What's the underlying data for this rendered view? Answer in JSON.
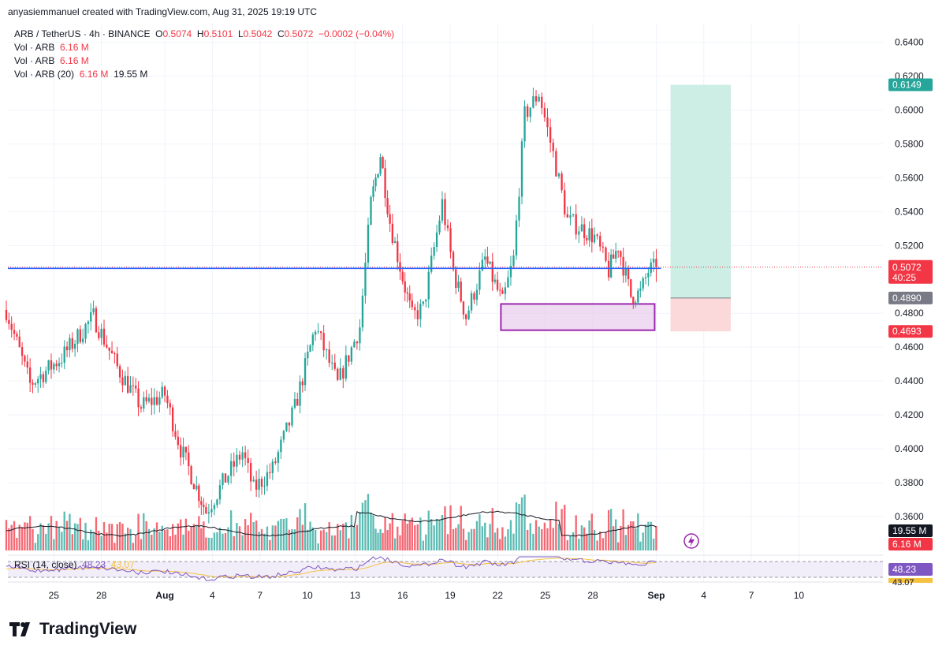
{
  "header": {
    "created_by": "anyasiemmanuel created with TradingView.com, Aug 31, 2025 19:19 UTC"
  },
  "legend": {
    "symbol": "ARB / TetherUS · 4h · BINANCE",
    "o_label": "O",
    "o": "0.5074",
    "h_label": "H",
    "h": "0.5101",
    "l_label": "L",
    "l": "0.5042",
    "c_label": "C",
    "c": "0.5072",
    "change": "−0.0002 (−0.04%)",
    "vol1_label": "Vol · ARB",
    "vol1": "6.16 M",
    "vol2_label": "Vol · ARB",
    "vol2": "6.16 M",
    "vol3_label": "Vol · ARB (20)",
    "vol3_a": "6.16 M",
    "vol3_b": "19.55 M"
  },
  "rsi_legend": {
    "label": "RSI (14, close)",
    "v1": "48.23",
    "v2": "43.07"
  },
  "badges": {
    "target": "0.6149",
    "last": "0.5072",
    "countdown": "40:25",
    "entry": "0.4890",
    "stop": "0.4693",
    "vol_ma": "19.55 M",
    "vol": "6.16 M",
    "rsi": "48.23",
    "rsi_ma": "43.07"
  },
  "brand": {
    "name": "TradingView"
  },
  "colors": {
    "up": "#26a69a",
    "down": "#f23645",
    "hline": "#2962ff",
    "zone": "#9c27b0",
    "target_fill": "#cdeee5",
    "stop_fill": "#fbd9db",
    "rsi": "#7e57c2",
    "rsi_ma": "#f5c242"
  },
  "chart_data": {
    "type": "candlestick",
    "symbol": "ARB / TetherUS",
    "interval": "4h",
    "exchange": "BINANCE",
    "y_ticks": [
      "0.6400",
      "0.6200",
      "0.6000",
      "0.5800",
      "0.5600",
      "0.5400",
      "0.5200",
      "0.4800",
      "0.4600",
      "0.4400",
      "0.4200",
      "0.4000",
      "0.3800",
      "0.3600"
    ],
    "ylim": [
      0.339,
      0.651
    ],
    "x_ticks": [
      "25",
      "28",
      "Aug",
      "4",
      "7",
      "10",
      "13",
      "16",
      "19",
      "22",
      "25",
      "28",
      "Sep",
      "4",
      "7",
      "10"
    ],
    "x_tick_days": [
      -7,
      -4,
      0,
      3,
      6,
      9,
      12,
      15,
      18,
      21,
      24,
      27,
      31,
      34,
      37,
      40
    ],
    "xlim_days": [
      -9.9,
      45.3
    ],
    "swing_points": [
      {
        "d": -10,
        "p": 0.482
      },
      {
        "d": -8.5,
        "p": 0.438
      },
      {
        "d": -6.5,
        "p": 0.454
      },
      {
        "d": -4.5,
        "p": 0.478
      },
      {
        "d": -3,
        "p": 0.448
      },
      {
        "d": -1.5,
        "p": 0.425
      },
      {
        "d": 0,
        "p": 0.432
      },
      {
        "d": 1,
        "p": 0.4
      },
      {
        "d": 2,
        "p": 0.377
      },
      {
        "d": 2.6,
        "p": 0.363
      },
      {
        "d": 4,
        "p": 0.385
      },
      {
        "d": 4.9,
        "p": 0.398
      },
      {
        "d": 5.6,
        "p": 0.376
      },
      {
        "d": 6.8,
        "p": 0.388
      },
      {
        "d": 8.2,
        "p": 0.424
      },
      {
        "d": 9.5,
        "p": 0.472
      },
      {
        "d": 10.9,
        "p": 0.438
      },
      {
        "d": 12.3,
        "p": 0.472
      },
      {
        "d": 13.0,
        "p": 0.545
      },
      {
        "d": 13.6,
        "p": 0.574
      },
      {
        "d": 14.2,
        "p": 0.534
      },
      {
        "d": 15.0,
        "p": 0.501
      },
      {
        "d": 15.6,
        "p": 0.478
      },
      {
        "d": 16.3,
        "p": 0.483
      },
      {
        "d": 17.5,
        "p": 0.545
      },
      {
        "d": 18.2,
        "p": 0.505
      },
      {
        "d": 19.0,
        "p": 0.478
      },
      {
        "d": 20.2,
        "p": 0.512
      },
      {
        "d": 21.3,
        "p": 0.486
      },
      {
        "d": 22.0,
        "p": 0.512
      },
      {
        "d": 22.7,
        "p": 0.597
      },
      {
        "d": 23.6,
        "p": 0.61
      },
      {
        "d": 24.5,
        "p": 0.574
      },
      {
        "d": 25.4,
        "p": 0.535
      },
      {
        "d": 26.3,
        "p": 0.53
      },
      {
        "d": 27.1,
        "p": 0.525
      },
      {
        "d": 28.0,
        "p": 0.505
      },
      {
        "d": 28.6,
        "p": 0.52
      },
      {
        "d": 29.4,
        "p": 0.49
      },
      {
        "d": 30.0,
        "p": 0.492
      },
      {
        "d": 30.5,
        "p": 0.505
      },
      {
        "d": 31.0,
        "p": 0.5072
      }
    ],
    "levels": {
      "horizontal_line": 0.5065,
      "last_price": 0.5072
    },
    "demand_zone": {
      "d_from": 21.2,
      "d_to": 30.9,
      "p_top": 0.4855,
      "p_bottom": 0.47
    },
    "position": {
      "d_from": 31.9,
      "d_to": 35.7,
      "target": 0.6149,
      "entry": 0.489,
      "stop": 0.4693
    },
    "volume": {
      "current": "6.16M",
      "ma20": "19.55M"
    },
    "rsi": {
      "value": 48.23,
      "ma": 43.07
    }
  }
}
